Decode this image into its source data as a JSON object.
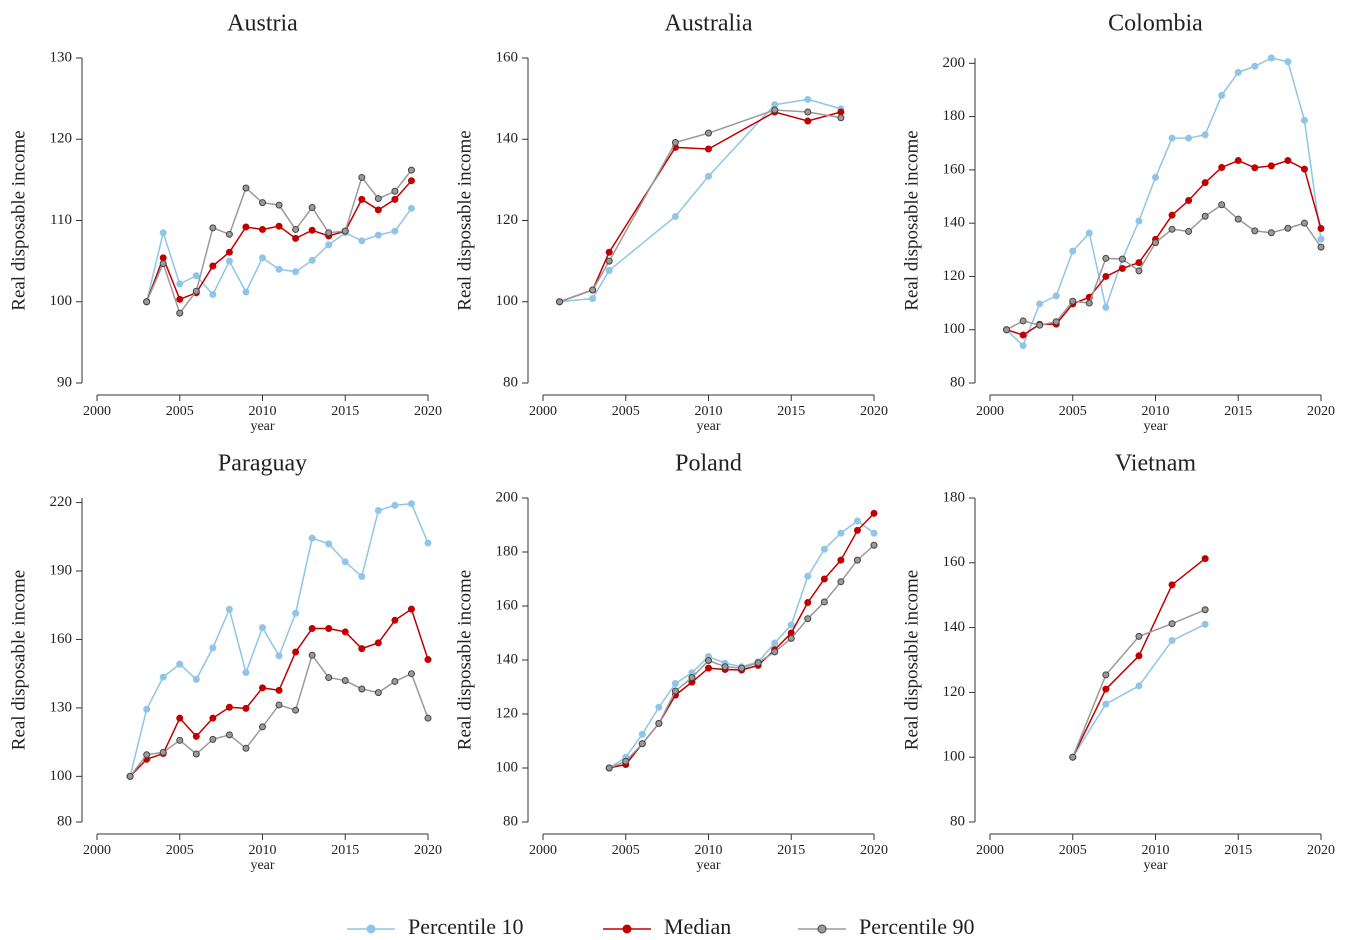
{
  "chart_data": [
    {
      "type": "line",
      "title": "Austria",
      "xlabel": "year",
      "ylabel": "Real disposable income",
      "x": [
        2003,
        2004,
        2005,
        2006,
        2007,
        2008,
        2009,
        2010,
        2011,
        2012,
        2013,
        2014,
        2015,
        2016,
        2017,
        2018,
        2019
      ],
      "series": [
        {
          "name": "Percentile 10",
          "color": "#8ec5e8",
          "values": [
            100,
            108.5,
            102.2,
            103.2,
            100.9,
            105,
            101.2,
            105.4,
            104,
            103.7,
            105.1,
            107,
            108.5,
            107.5,
            108.2,
            108.7,
            111.5
          ]
        },
        {
          "name": "Median",
          "color": "#c00000",
          "values": [
            100,
            105.4,
            100.3,
            101.1,
            104.4,
            106.1,
            109.2,
            108.9,
            109.3,
            107.8,
            108.8,
            108.1,
            108.7,
            112.6,
            111.3,
            112.6,
            114.9
          ]
        },
        {
          "name": "Percentile 90",
          "color": "#9a9a9a",
          "values": [
            100,
            104.7,
            98.6,
            101.3,
            109.1,
            108.3,
            114,
            112.2,
            111.9,
            108.9,
            111.6,
            108.5,
            108.7,
            115.3,
            112.7,
            113.6,
            116.2
          ]
        }
      ],
      "xlim": [
        2000,
        2020
      ],
      "xticks": [
        2000,
        2005,
        2010,
        2015,
        2020
      ],
      "ylim": [
        90,
        130
      ],
      "yticks": [
        90,
        100,
        110,
        120,
        130
      ]
    },
    {
      "type": "line",
      "title": "Australia",
      "xlabel": "year",
      "ylabel": "Real disposable income",
      "x": [
        2001,
        2003,
        2004,
        2008,
        2010,
        2014,
        2016,
        2018
      ],
      "series": [
        {
          "name": "Percentile 10",
          "color": "#8ec5e8",
          "values": [
            100,
            100.8,
            107.7,
            121,
            130.9,
            148.5,
            149.8,
            147.5
          ]
        },
        {
          "name": "Median",
          "color": "#c00000",
          "values": [
            100,
            102.9,
            112.2,
            138,
            137.6,
            146.7,
            144.5,
            146.7
          ]
        },
        {
          "name": "Percentile 90",
          "color": "#9a9a9a",
          "values": [
            100,
            102.9,
            110,
            139.2,
            141.5,
            147.2,
            146.7,
            145.3
          ]
        }
      ],
      "xlim": [
        2000,
        2020
      ],
      "xticks": [
        2000,
        2005,
        2010,
        2015,
        2020
      ],
      "ylim": [
        80,
        160
      ],
      "yticks": [
        80,
        100,
        120,
        140,
        160
      ]
    },
    {
      "type": "line",
      "title": "Colombia",
      "xlabel": "year",
      "ylabel": "Real disposable income",
      "x": [
        2001,
        2002,
        2003,
        2004,
        2005,
        2006,
        2007,
        2008,
        2009,
        2010,
        2011,
        2012,
        2013,
        2014,
        2015,
        2016,
        2017,
        2018,
        2019,
        2020
      ],
      "series": [
        {
          "name": "Percentile 10",
          "color": "#8ec5e8",
          "values": [
            100,
            94,
            109.7,
            112.7,
            129.5,
            136.3,
            108.4,
            126.5,
            140.8,
            157.2,
            171.9,
            171.9,
            173.2,
            188,
            196.6,
            198.9,
            202,
            200.6,
            178.6,
            134
          ]
        },
        {
          "name": "Median",
          "color": "#c00000",
          "values": [
            100,
            98,
            102,
            102.1,
            109.7,
            112.2,
            120,
            123,
            125.2,
            133.9,
            143,
            148.5,
            155.2,
            160.9,
            163.5,
            160.8,
            161.5,
            163.5,
            160.3,
            138
          ]
        },
        {
          "name": "Percentile 90",
          "color": "#9a9a9a",
          "values": [
            100,
            103.3,
            101.7,
            103,
            110.7,
            110,
            126.8,
            126.5,
            122.1,
            132.7,
            137.7,
            136.9,
            142.6,
            146.9,
            141.5,
            137.1,
            136.4,
            138.1,
            140,
            131
          ]
        }
      ],
      "xlim": [
        2000,
        2020
      ],
      "xticks": [
        2000,
        2005,
        2010,
        2015,
        2020
      ],
      "ylim": [
        80,
        202
      ],
      "yticks": [
        80,
        100,
        120,
        140,
        160,
        180,
        200
      ]
    },
    {
      "type": "line",
      "title": "Paraguay",
      "xlabel": "year",
      "ylabel": "Real disposable income",
      "x": [
        2002,
        2003,
        2004,
        2005,
        2006,
        2007,
        2008,
        2009,
        2010,
        2011,
        2012,
        2013,
        2014,
        2015,
        2016,
        2017,
        2018,
        2019,
        2020
      ],
      "series": [
        {
          "name": "Percentile 10",
          "color": "#8ec5e8",
          "values": [
            100,
            129.4,
            143.5,
            149.2,
            142.5,
            156.3,
            173.2,
            145.5,
            165.2,
            152.8,
            171.5,
            204.4,
            201.9,
            194,
            187.6,
            216.5,
            218.8,
            219.5,
            202.3
          ]
        },
        {
          "name": "Median",
          "color": "#c00000",
          "values": [
            100,
            107.5,
            110,
            125.5,
            117.5,
            125.5,
            130.3,
            129.8,
            138.8,
            137.7,
            154.5,
            164.8,
            164.8,
            163.3,
            156,
            158.5,
            168.4,
            173.3,
            151.2
          ]
        },
        {
          "name": "Percentile 90",
          "color": "#9a9a9a",
          "values": [
            100,
            109.5,
            110.5,
            115.8,
            109.8,
            116.2,
            118.2,
            112.3,
            121.7,
            131.3,
            129,
            153.1,
            143.3,
            142,
            138.3,
            136.7,
            141.6,
            145,
            125.5
          ]
        }
      ],
      "xlim": [
        2000,
        2020
      ],
      "xticks": [
        2000,
        2005,
        2010,
        2015,
        2020
      ],
      "ylim": [
        80,
        222
      ],
      "yticks": [
        80,
        100,
        130,
        160,
        190,
        220
      ]
    },
    {
      "type": "line",
      "title": "Poland",
      "xlabel": "year",
      "ylabel": "Real disposable income",
      "x": [
        2004,
        2005,
        2006,
        2007,
        2008,
        2009,
        2010,
        2011,
        2012,
        2013,
        2014,
        2015,
        2016,
        2017,
        2018,
        2019,
        2020
      ],
      "series": [
        {
          "name": "Percentile 10",
          "color": "#8ec5e8",
          "values": [
            100,
            104,
            112.5,
            122.5,
            131.3,
            135.3,
            141.3,
            138.8,
            137.5,
            139.3,
            146.3,
            153,
            171,
            181,
            187,
            191.5,
            187
          ]
        },
        {
          "name": "Median",
          "color": "#c00000",
          "values": [
            100,
            101.3,
            109,
            116.5,
            127,
            131.8,
            137,
            136.5,
            136.3,
            138,
            143.8,
            150,
            161.3,
            170,
            177,
            188,
            194.3
          ]
        },
        {
          "name": "Percentile 90",
          "color": "#9a9a9a",
          "values": [
            100,
            102.5,
            109,
            116.5,
            128.5,
            133.5,
            139.8,
            137.5,
            137,
            139,
            143,
            148,
            155.3,
            161.5,
            169,
            177,
            182.5
          ]
        }
      ],
      "xlim": [
        2000,
        2020
      ],
      "xticks": [
        2000,
        2005,
        2010,
        2015,
        2020
      ],
      "ylim": [
        80,
        200
      ],
      "yticks": [
        80,
        100,
        120,
        140,
        160,
        180,
        200
      ]
    },
    {
      "type": "line",
      "title": "Vietnam",
      "xlabel": "year",
      "ylabel": "Real disposable income",
      "x": [
        2005,
        2007,
        2009,
        2011,
        2013
      ],
      "series": [
        {
          "name": "Percentile 10",
          "color": "#8ec5e8",
          "values": [
            100,
            116.4,
            122,
            136,
            141
          ]
        },
        {
          "name": "Median",
          "color": "#c00000",
          "values": [
            100,
            121,
            131.3,
            153.2,
            161.3
          ]
        },
        {
          "name": "Percentile 90",
          "color": "#9a9a9a",
          "values": [
            100,
            125.4,
            137.3,
            141.2,
            145.5
          ]
        }
      ],
      "xlim": [
        2000,
        2020
      ],
      "xticks": [
        2000,
        2005,
        2010,
        2015,
        2020
      ],
      "ylim": [
        80,
        180
      ],
      "yticks": [
        80,
        100,
        120,
        140,
        160,
        180
      ]
    }
  ]
}
